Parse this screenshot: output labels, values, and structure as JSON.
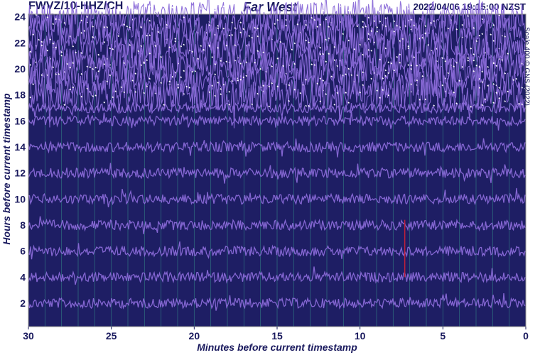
{
  "header": {
    "station": "FWVZ/10-HHZ/CH",
    "title": "Far West",
    "timestamp": "2022/04/06 19:15:00 NZST"
  },
  "credit": "Scale 400 © GNS (2022)",
  "colors": {
    "background": "#1e1e64",
    "trace": "#8a6ad8",
    "saturation": "#ffffff",
    "minute_grid": "#3aa890",
    "event_marker": "#c0203a",
    "text": "#1a1a5e"
  },
  "chart_data": {
    "type": "line",
    "title": "Far West",
    "xlabel": "Minutes before current timestamp",
    "ylabel": "Hours before current timestamp",
    "xlim": [
      30,
      0
    ],
    "ylim": [
      0.2,
      24.2
    ],
    "x_ticks": [
      30,
      25,
      20,
      15,
      10,
      5,
      0
    ],
    "y_ticks": [
      2,
      4,
      6,
      8,
      10,
      12,
      14,
      16,
      18,
      20,
      22,
      24
    ],
    "minute_gridlines": [
      29,
      28,
      27,
      26,
      25,
      24,
      23,
      22,
      21,
      20,
      19,
      18,
      17,
      16,
      15,
      14,
      13,
      12,
      11,
      10,
      9,
      8,
      7,
      6,
      5,
      4,
      3,
      2,
      1
    ],
    "trace_rows_hours": [
      2,
      4,
      6,
      8,
      10,
      12,
      14,
      16,
      17,
      18,
      19,
      20,
      21,
      22,
      23,
      24
    ],
    "saturated_rows_from_hour": 18,
    "event_marker": {
      "minute": 7.3,
      "hour_from": 4,
      "hour_to": 8.4
    }
  }
}
